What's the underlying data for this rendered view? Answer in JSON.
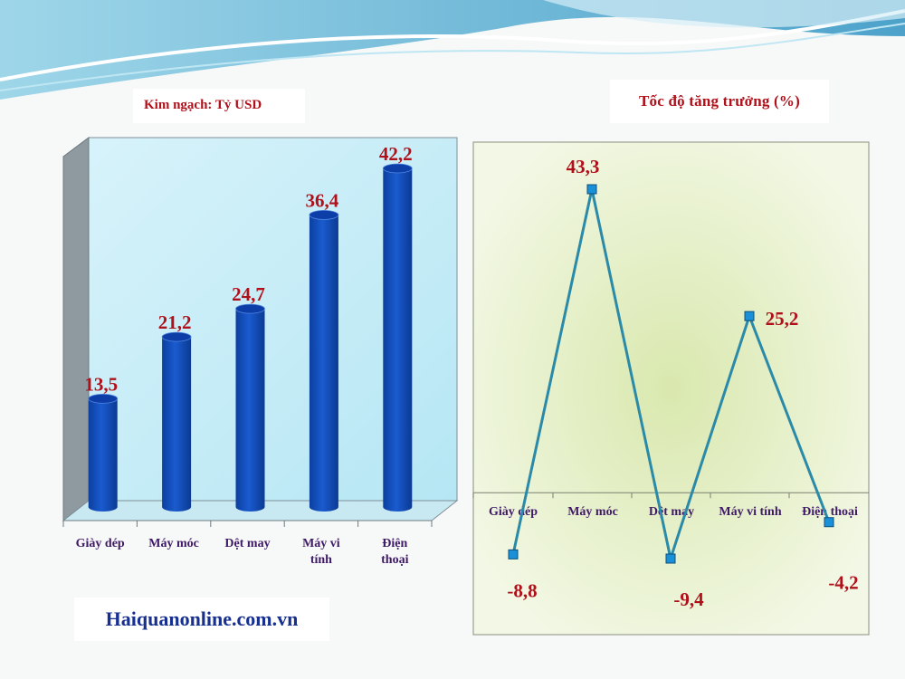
{
  "left_title": "Kim ngạch: Tỷ USD",
  "right_title": "Tốc độ tăng trưởng (%)",
  "source": "Haiquanonline.com.vn",
  "colors": {
    "bar": "#1a5bd0",
    "bar_top": "#0d3ea8",
    "line": "#2a8aa8",
    "marker": "#1990d8",
    "value_text": "#b0101a",
    "category_text": "#3f1a66"
  },
  "chart_data": [
    {
      "type": "bar",
      "categories": [
        [
          "Giày dép"
        ],
        [
          "Máy móc"
        ],
        [
          "Dệt may"
        ],
        [
          "Máy vi",
          "tính"
        ],
        [
          "Điện",
          "thoại"
        ]
      ],
      "values": [
        13.5,
        21.2,
        24.7,
        36.4,
        42.2
      ],
      "value_labels": [
        "13,5",
        "21,2",
        "24,7",
        "36,4",
        "42,2"
      ],
      "ylim": [
        0,
        45
      ],
      "grid": false
    },
    {
      "type": "line",
      "categories": [
        "Giày dép",
        "Máy móc",
        "Dệt may",
        "Máy vi tính",
        "Điện thoại"
      ],
      "values": [
        -8.8,
        43.3,
        -9.4,
        25.2,
        -4.2
      ],
      "value_labels": [
        "-8,8",
        "43,3",
        "-9,4",
        "25,2",
        "-4,2"
      ],
      "ylim": [
        -15,
        50
      ],
      "grid": false
    }
  ]
}
